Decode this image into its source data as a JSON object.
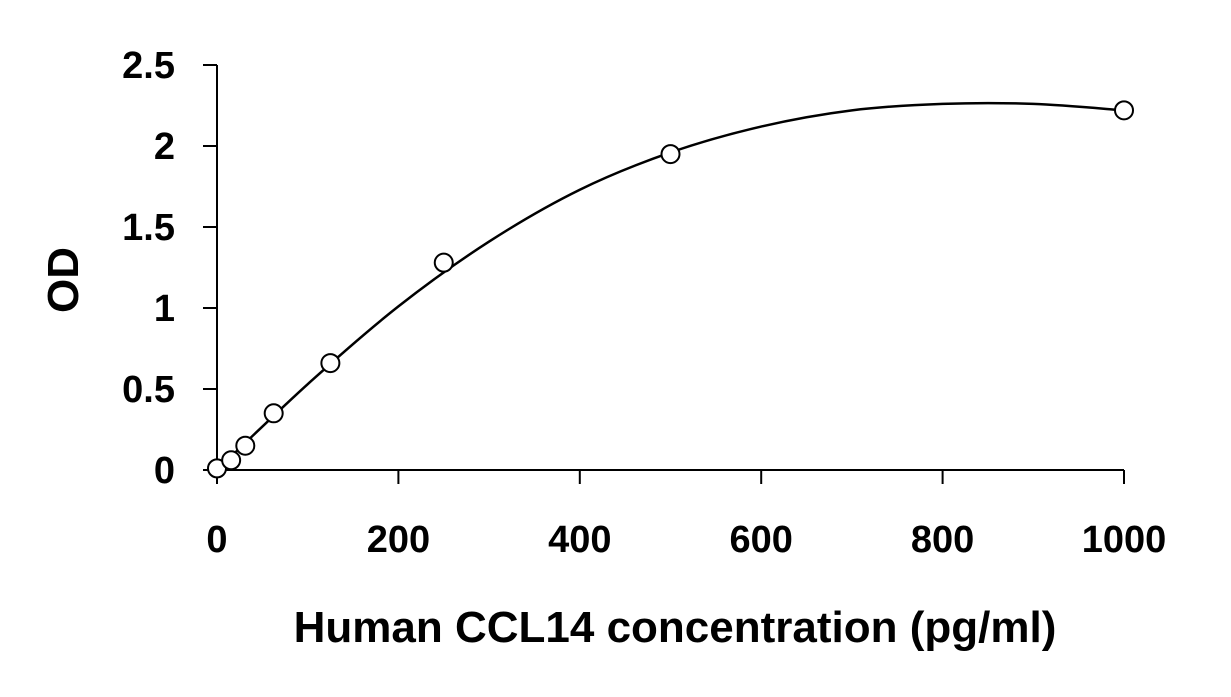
{
  "chart_data": {
    "type": "scatter",
    "title": "",
    "xlabel": "Human CCL14 concentration (pg/ml)",
    "ylabel": "OD",
    "xlim": [
      0,
      1000
    ],
    "ylim": [
      0,
      2.5
    ],
    "x_ticks": [
      0,
      200,
      400,
      600,
      800,
      1000
    ],
    "y_ticks": [
      0,
      0.5,
      1,
      1.5,
      2,
      2.5
    ],
    "x_tick_labels": [
      "0",
      "200",
      "400",
      "600",
      "800",
      "1000"
    ],
    "y_tick_labels": [
      "0",
      "0.5",
      "1",
      "1.5",
      "2",
      "2.5"
    ],
    "grid": false,
    "legend": "none",
    "marker": "open-circle",
    "trendline": "polynomial-fit",
    "series": [
      {
        "x": [
          0,
          15.6,
          31.2,
          62.5,
          125,
          250,
          500,
          1000
        ],
        "y": [
          0.01,
          0.06,
          0.15,
          0.35,
          0.66,
          1.28,
          1.95,
          2.22
        ]
      }
    ],
    "fit_curve": {
      "x": [
        0,
        100,
        200,
        300,
        400,
        500,
        600,
        700,
        800,
        900,
        1000
      ],
      "y": [
        0.0,
        0.53,
        1.01,
        1.41,
        1.73,
        1.96,
        2.12,
        2.22,
        2.26,
        2.26,
        2.22
      ]
    }
  },
  "colors": {
    "axis": "#000000",
    "marker_stroke": "#000000",
    "marker_fill": "#ffffff",
    "curve": "#000000",
    "background": "#ffffff"
  }
}
